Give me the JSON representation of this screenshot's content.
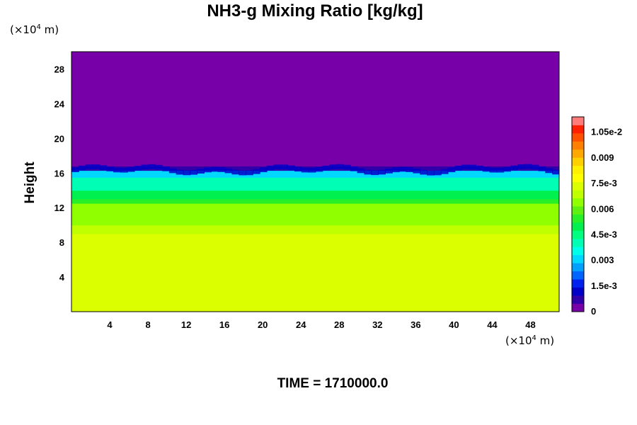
{
  "chart_data": {
    "type": "heatmap",
    "title": "NH3-g Mixing Ratio [kg/kg]",
    "xlabel": "",
    "ylabel": "Height",
    "x_unit_prefix": "(×10",
    "x_unit_exp": "4",
    "x_unit_suffix": " m)",
    "y_unit_prefix": "(×10",
    "y_unit_exp": "4",
    "y_unit_suffix": " m)",
    "x_ticks": [
      4,
      8,
      12,
      16,
      20,
      24,
      28,
      32,
      36,
      40,
      44,
      48
    ],
    "y_ticks": [
      4,
      8,
      12,
      16,
      20,
      24,
      28
    ],
    "xlim": [
      0,
      51
    ],
    "ylim": [
      0,
      30
    ],
    "colorbar": {
      "range": [
        0,
        0.0114
      ],
      "tick_values": [
        0,
        0.0015,
        0.003,
        0.0045,
        0.006,
        0.0075,
        0.009,
        0.0105
      ],
      "tick_labels": [
        "0",
        "1.5e-3",
        "0.003",
        "4.5e-3",
        "0.006",
        "7.5e-3",
        "0.009",
        "1.05e-2"
      ],
      "levels": 24,
      "colors": [
        "#7800a8",
        "#3200a8",
        "#0000c8",
        "#0020f0",
        "#0064ff",
        "#00a0ff",
        "#00d8ff",
        "#00ffe8",
        "#00ffb4",
        "#00ff80",
        "#00f050",
        "#28f028",
        "#60f010",
        "#90ff00",
        "#c0ff00",
        "#dcff00",
        "#ffff00",
        "#fff000",
        "#ffd000",
        "#ffa800",
        "#ff8000",
        "#ff5000",
        "#ff2000",
        "#ff7a7a"
      ]
    },
    "field_summary": [
      {
        "height_range": [
          0,
          9.0
        ],
        "value": 0.0072
      },
      {
        "height_range": [
          9.0,
          10.0
        ],
        "value": 0.0068
      },
      {
        "height_range": [
          10.0,
          12.5
        ],
        "value": 0.0063
      },
      {
        "height_range": [
          12.5,
          13.0
        ],
        "value": 0.0056
      },
      {
        "height_range": [
          13.0,
          14.0
        ],
        "value": 0.0048
      },
      {
        "height_range": [
          14.0,
          15.5
        ],
        "value": 0.004
      },
      {
        "height_range": [
          15.5,
          16.3
        ],
        "value": 0.003
      },
      {
        "height_range": [
          16.3,
          16.8
        ],
        "value": 0.0008
      },
      {
        "height_range": [
          16.8,
          30.0
        ],
        "value": 0.0
      }
    ],
    "footer": {
      "time_label": "TIME = ",
      "time_value": "1710000.0"
    }
  }
}
